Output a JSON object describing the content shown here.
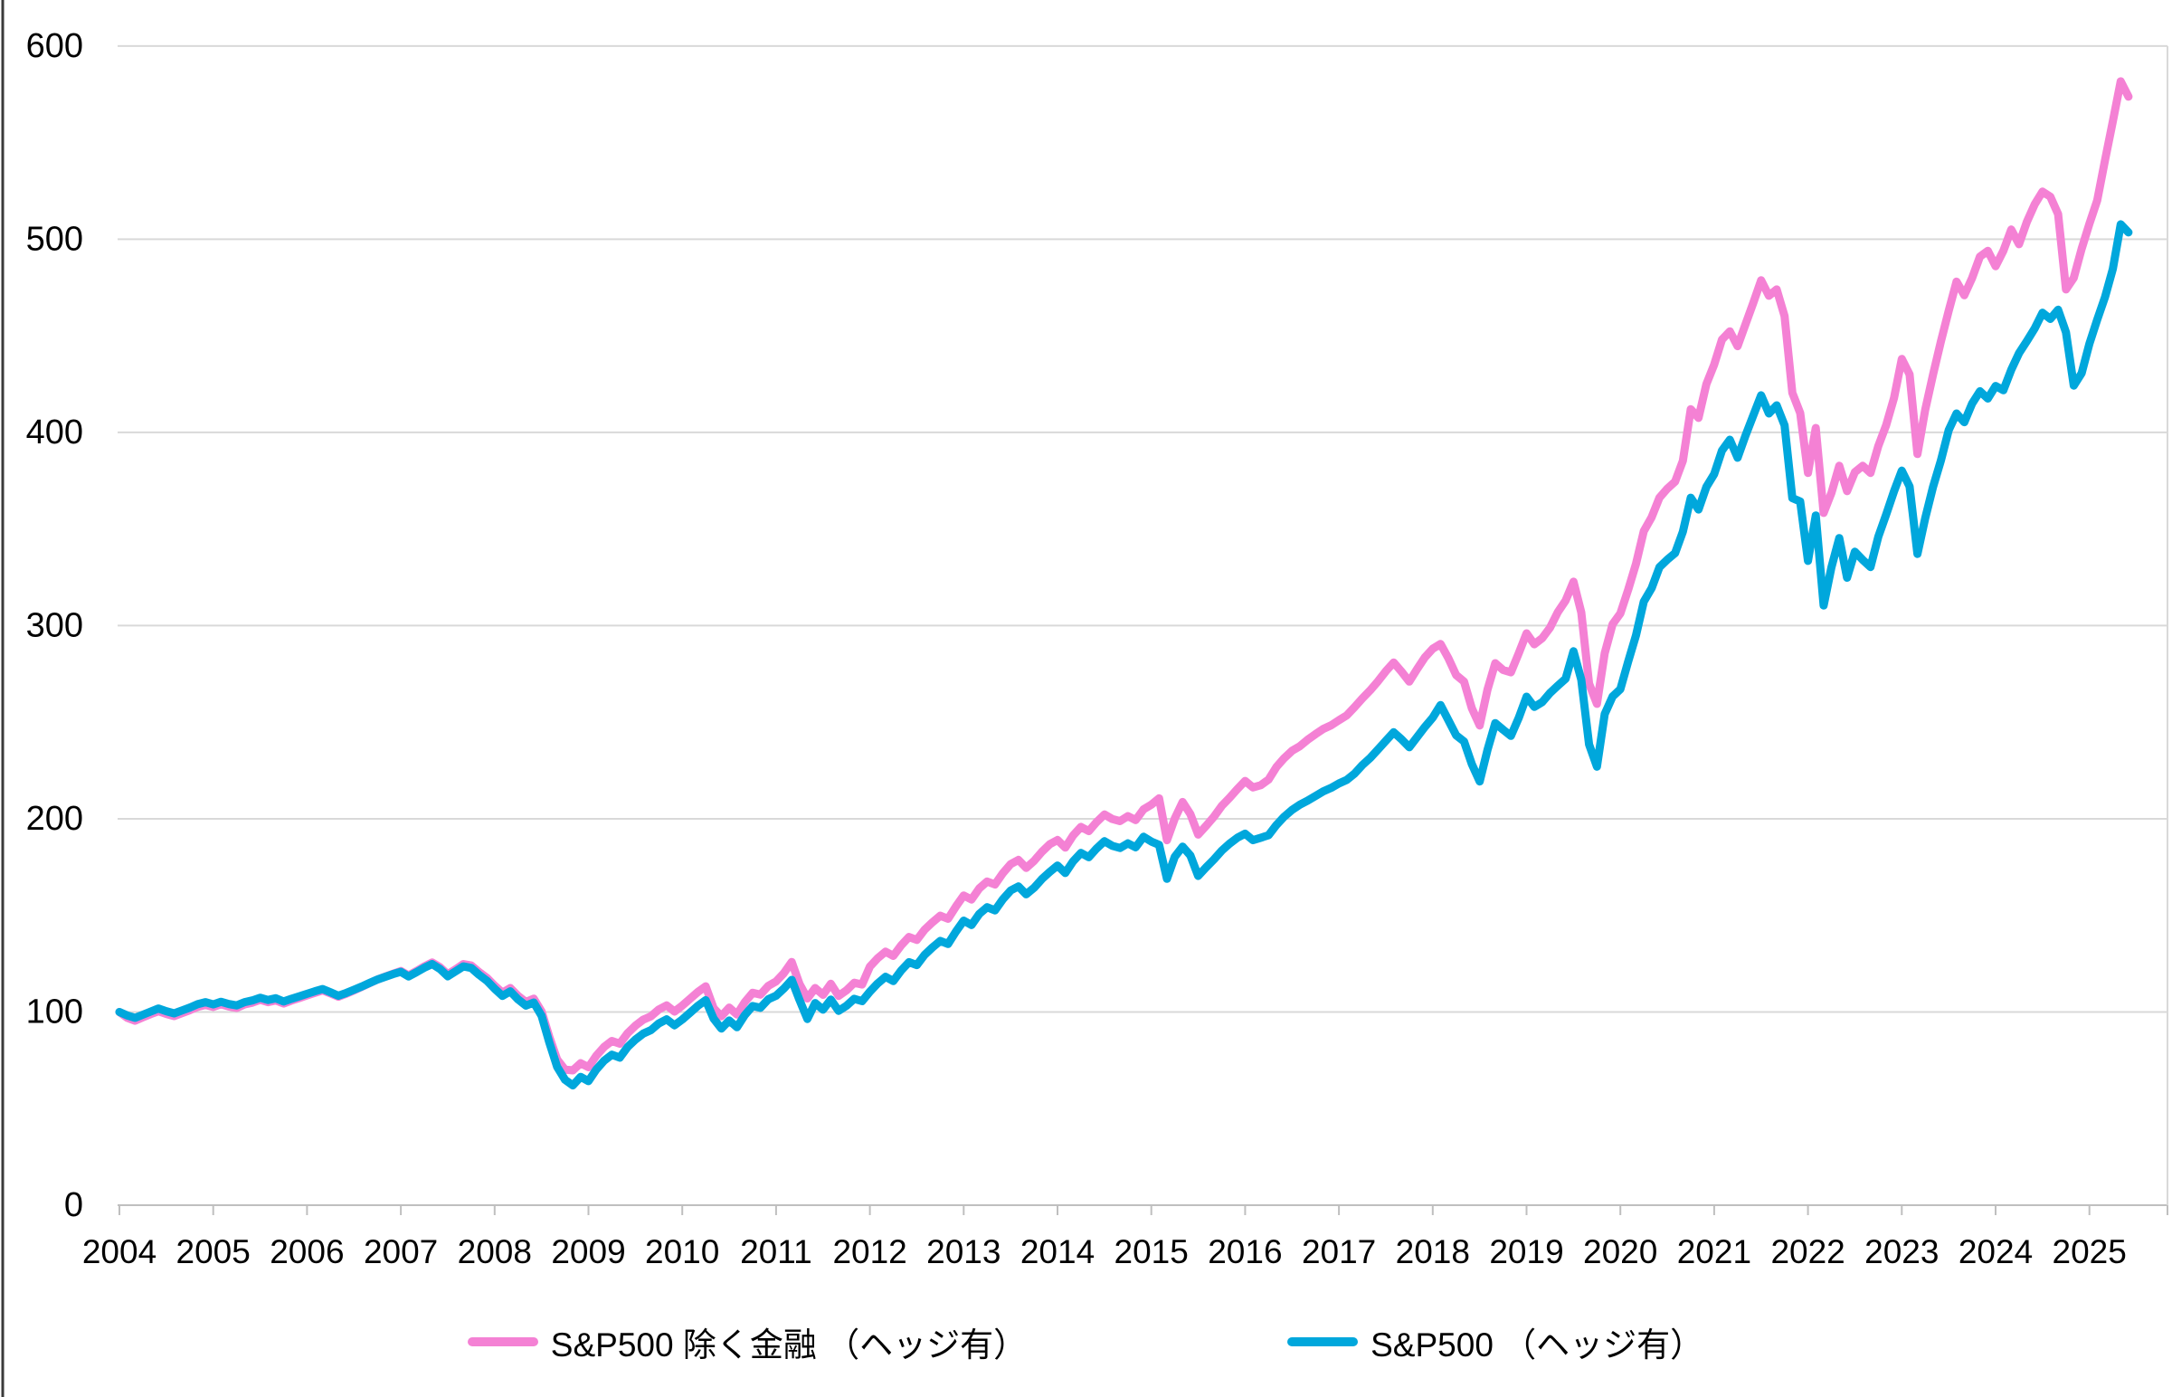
{
  "chart_data": {
    "type": "line",
    "title": "",
    "xlabel": "",
    "ylabel": "",
    "x_start_year": 2004,
    "x_step_months": 1,
    "x_tick_labels": [
      "2004",
      "2005",
      "2006",
      "2007",
      "2008",
      "2009",
      "2010",
      "2011",
      "2012",
      "2013",
      "2014",
      "2015",
      "2016",
      "2017",
      "2018",
      "2019",
      "2020",
      "2021",
      "2022",
      "2023",
      "2024",
      "2025"
    ],
    "y_ticks": [
      0,
      100,
      200,
      300,
      400,
      500,
      600
    ],
    "ylim": [
      0,
      600
    ],
    "grid": "horizontal",
    "legend_position": "bottom",
    "series": [
      {
        "name": "S&P500 除く金融 （ヘッジ有）",
        "color": "#F481D4",
        "values": [
          100.0,
          97.0,
          95.5,
          97.2,
          98.9,
          100.4,
          99.0,
          97.9,
          99.4,
          100.9,
          102.6,
          103.7,
          102.6,
          104.0,
          102.8,
          102.1,
          103.9,
          104.8,
          106.3,
          105.1,
          106.0,
          104.4,
          105.9,
          107.2,
          108.6,
          109.9,
          111.2,
          109.6,
          107.9,
          109.4,
          111.2,
          113.0,
          114.9,
          116.8,
          118.3,
          119.8,
          121.2,
          118.9,
          121.2,
          123.6,
          125.6,
          123.2,
          119.5,
          122.1,
          124.8,
          124.1,
          120.7,
          117.7,
          113.6,
          110.0,
          112.4,
          108.3,
          105.2,
          106.9,
          100.2,
          87.0,
          75.4,
          70.2,
          69.8,
          73.5,
          71.4,
          77.3,
          81.9,
          85.0,
          83.6,
          89.0,
          92.9,
          96.0,
          97.8,
          101.3,
          103.4,
          100.2,
          103.3,
          106.8,
          110.4,
          113.3,
          102.0,
          97.8,
          102.3,
          98.7,
          105.1,
          109.9,
          109.0,
          113.5,
          115.8,
          120.1,
          125.9,
          114.5,
          107.0,
          112.4,
          108.9,
          114.6,
          108.3,
          111.2,
          115.1,
          114.2,
          123.5,
          127.8,
          131.2,
          129.0,
          134.5,
          138.8,
          137.3,
          142.6,
          146.4,
          149.8,
          148.2,
          154.6,
          160.3,
          158.2,
          164.0,
          167.5,
          166.0,
          171.8,
          176.5,
          178.7,
          174.6,
          178.2,
          182.9,
          186.8,
          189.0,
          185.1,
          191.4,
          195.8,
          193.6,
          198.3,
          202.2,
          199.9,
          198.8,
          201.4,
          199.3,
          204.9,
          207.3,
          210.6,
          188.9,
          200.1,
          208.7,
          202.4,
          191.8,
          196.3,
          201.0,
          206.6,
          210.8,
          215.4,
          219.6,
          216.2,
          217.4,
          220.3,
          226.8,
          231.4,
          235.2,
          237.6,
          240.9,
          243.8,
          246.5,
          248.4,
          251.0,
          253.5,
          257.8,
          262.3,
          266.5,
          271.2,
          276.4,
          280.9,
          276.2,
          271.0,
          277.5,
          283.6,
          288.0,
          290.5,
          283.1,
          274.4,
          271.0,
          257.2,
          248.3,
          266.8,
          280.5,
          277.0,
          275.8,
          285.7,
          296.0,
          290.3,
          293.5,
          298.9,
          307.0,
          313.0,
          322.7,
          306.8,
          270.0,
          259.5,
          285.7,
          300.7,
          306.3,
          318.5,
          332.0,
          348.9,
          356.1,
          366.2,
          370.8,
          374.5,
          385.3,
          412.0,
          407.5,
          425.0,
          435.1,
          448.0,
          452.3,
          444.6,
          455.9,
          467.0,
          478.7,
          470.7,
          474.0,
          460.2,
          420.5,
          410.0,
          379.0,
          402.3,
          358.3,
          368.6,
          382.7,
          369.6,
          379.4,
          382.7,
          379.0,
          393.0,
          403.7,
          417.8,
          438.0,
          430.0,
          388.8,
          411.7,
          430.0,
          447.0,
          463.0,
          478.0,
          471.0,
          480.0,
          491.0,
          494.0,
          486.0,
          494.0,
          505.0,
          497.4,
          509.0,
          518.0,
          524.6,
          522.0,
          513.0,
          474.0,
          480.0,
          495.0,
          508.0,
          520.0,
          541.0,
          561.0,
          581.7,
          573.8
        ]
      },
      {
        "name": "S&P500 （ヘッジ有）",
        "color": "#00A7DC",
        "values": [
          100.0,
          98.2,
          97.0,
          98.6,
          100.2,
          101.8,
          100.4,
          99.3,
          100.8,
          102.3,
          104.0,
          105.1,
          103.9,
          105.3,
          104.1,
          103.4,
          105.1,
          106.0,
          107.4,
          106.2,
          107.1,
          105.4,
          106.8,
          108.1,
          109.4,
          110.7,
          111.9,
          110.2,
          108.4,
          109.8,
          111.5,
          113.2,
          115.0,
          116.8,
          118.2,
          119.6,
          120.8,
          118.4,
          120.6,
          122.9,
          124.8,
          122.3,
          118.5,
          121.0,
          123.6,
          122.8,
          119.3,
          116.2,
          112.0,
          108.3,
          110.7,
          106.5,
          103.3,
          104.9,
          98.0,
          84.1,
          71.6,
          64.9,
          62.0,
          66.4,
          64.2,
          70.2,
          74.8,
          77.9,
          76.4,
          81.8,
          85.7,
          88.8,
          90.6,
          94.1,
          96.2,
          93.1,
          96.1,
          99.6,
          103.2,
          106.1,
          96.6,
          91.4,
          95.6,
          92.1,
          98.4,
          103.1,
          102.2,
          106.6,
          108.4,
          112.1,
          116.6,
          106.2,
          96.4,
          104.6,
          101.2,
          106.4,
          100.6,
          103.2,
          106.8,
          105.6,
          110.5,
          114.8,
          118.2,
          116.0,
          121.5,
          125.8,
          124.3,
          129.6,
          133.4,
          136.8,
          135.2,
          141.6,
          147.3,
          145.0,
          150.8,
          154.2,
          152.6,
          158.3,
          162.9,
          165.0,
          160.9,
          164.3,
          168.8,
          172.5,
          175.8,
          171.9,
          178.0,
          182.3,
          180.1,
          184.6,
          188.4,
          186.0,
          184.9,
          187.3,
          185.2,
          190.7,
          188.2,
          186.5,
          168.9,
          180.3,
          185.6,
          181.0,
          170.4,
          174.8,
          178.9,
          183.5,
          187.1,
          190.2,
          192.3,
          188.9,
          190.2,
          191.5,
          196.8,
          201.1,
          204.6,
          207.3,
          209.4,
          211.8,
          214.2,
          216.0,
          218.3,
          220.1,
          223.4,
          227.8,
          231.5,
          235.9,
          240.4,
          244.8,
          241.2,
          237.0,
          242.3,
          247.6,
          252.4,
          258.9,
          251.0,
          243.2,
          240.0,
          228.3,
          219.3,
          235.6,
          249.5,
          246.1,
          242.9,
          252.3,
          263.2,
          257.9,
          260.4,
          265.1,
          268.9,
          272.5,
          286.7,
          272.0,
          238.5,
          227.0,
          254.2,
          263.3,
          267.1,
          281.3,
          295.0,
          312.4,
          319.4,
          330.2,
          334.1,
          337.5,
          348.6,
          366.2,
          360.1,
          371.8,
          378.4,
          390.6,
          396.2,
          386.9,
          398.3,
          408.7,
          419.2,
          409.8,
          414.0,
          403.7,
          366.0,
          364.2,
          333.5,
          357.0,
          310.4,
          330.1,
          345.3,
          324.8,
          338.2,
          334.0,
          330.3,
          346.1,
          357.4,
          369.5,
          380.2,
          372.0,
          337.1,
          355.6,
          371.9,
          385.4,
          401.2,
          409.8,
          405.3,
          415.0,
          421.3,
          417.5,
          424.0,
          421.8,
          432.4,
          441.0,
          447.3,
          453.8,
          461.9,
          458.7,
          463.5,
          451.8,
          424.2,
          430.6,
          445.9,
          458.3,
          470.1,
          484.6,
          507.7,
          503.5
        ]
      }
    ],
    "colors": {
      "gridline": "#D9D9D9",
      "axis": "#BFBFBF",
      "tick_text": "#000000",
      "plot_right_border": "#D9D9D9",
      "left_border": "#3A3A3A"
    }
  },
  "legend": {
    "items": [
      {
        "label": "S&P500 除く金融 （ヘッジ有）",
        "color": "#F481D4"
      },
      {
        "label": "S&P500 （ヘッジ有）",
        "color": "#00A7DC"
      }
    ]
  }
}
